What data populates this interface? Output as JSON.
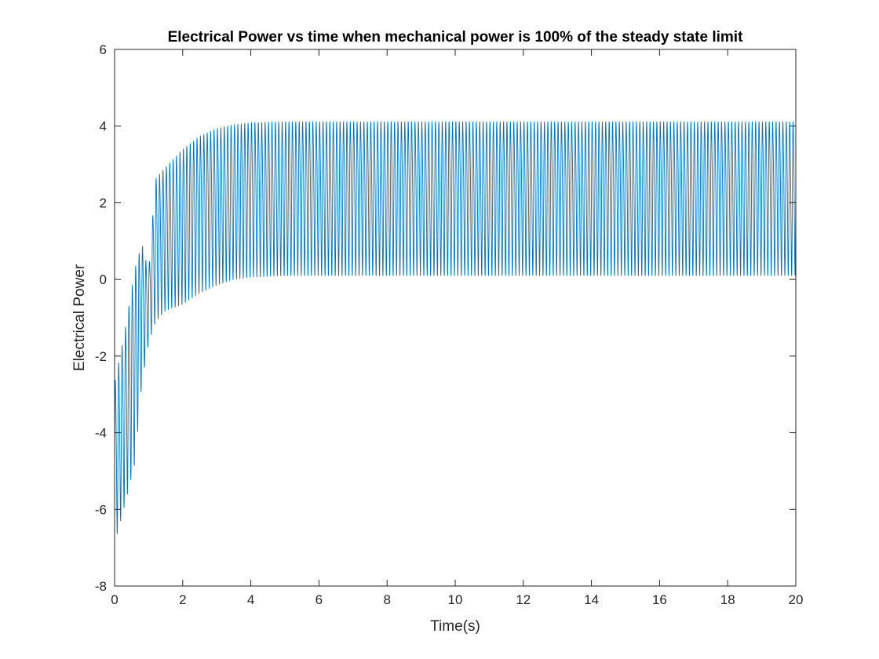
{
  "chart_data": {
    "type": "line",
    "title": "Electrical Power vs time when mechanical power is 100% of the steady state limit",
    "xlabel": "Time(s)",
    "ylabel": "Electrical Power",
    "xlim": [
      0,
      20
    ],
    "ylim": [
      -8,
      6
    ],
    "xticks": [
      0,
      2,
      4,
      6,
      8,
      10,
      12,
      14,
      16,
      18,
      20
    ],
    "yticks": [
      -8,
      -6,
      -4,
      -2,
      0,
      2,
      4,
      6
    ],
    "grid": false,
    "series": [
      {
        "name": "Electrical Power",
        "color": "#0072BD",
        "oscillation_period_s": 0.1,
        "envelope_max": {
          "t": [
            0,
            0.3,
            0.6,
            0.8,
            1.0,
            1.2,
            1.5,
            2.0,
            2.5,
            3.0,
            3.5,
            4.0,
            5.0,
            20
          ],
          "p": [
            -2.3,
            -0.9,
            0.8,
            1.3,
            0.4,
            3.0,
            3.3,
            3.8,
            4.15,
            4.35,
            4.45,
            4.5,
            4.52,
            4.52
          ]
        },
        "envelope_min": {
          "t": [
            0,
            0.3,
            0.6,
            0.8,
            1.0,
            1.2,
            1.5,
            2.0,
            2.5,
            3.0,
            3.5,
            4.0,
            5.0,
            20
          ],
          "p": [
            -7.0,
            -6.0,
            -4.9,
            -2.8,
            -1.7,
            -1.2,
            -0.9,
            -0.75,
            -0.45,
            -0.25,
            -0.1,
            -0.04,
            0.0,
            0.0
          ]
        }
      }
    ]
  }
}
